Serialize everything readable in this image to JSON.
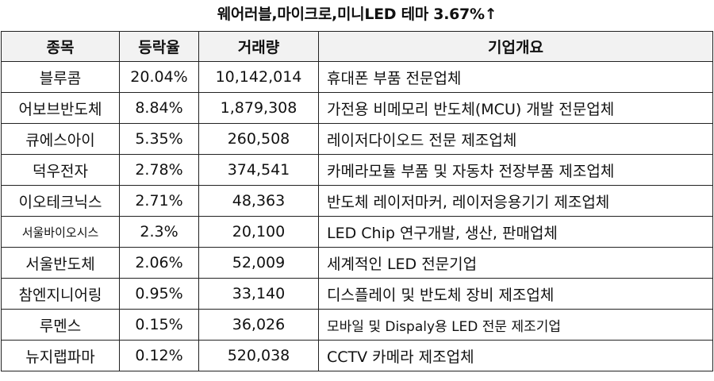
{
  "title": "웨어러블,마이크로,미니LED 테마 3.67%↑",
  "headers": {
    "name": "종목",
    "change": "등락율",
    "volume": "거래량",
    "overview": "기업개요"
  },
  "rows": [
    {
      "name": "블루콤",
      "change": "20.04%",
      "volume": "10,142,014",
      "overview": "휴대폰 부품 전문업체"
    },
    {
      "name": "어보브반도체",
      "change": "8.84%",
      "volume": "1,879,308",
      "overview": "가전용 비메모리 반도체(MCU) 개발 전문업체"
    },
    {
      "name": "큐에스아이",
      "change": "5.35%",
      "volume": "260,508",
      "overview": "레이저다이오드 전문 제조업체"
    },
    {
      "name": "덕우전자",
      "change": "2.78%",
      "volume": "374,541",
      "overview": "카메라모듈 부품 및 자동차 전장부품 제조업체"
    },
    {
      "name": "이오테크닉스",
      "change": "2.71%",
      "volume": "48,363",
      "overview": "반도체 레이저마커, 레이저응용기기 제조업체"
    },
    {
      "name": "서울바이오시스",
      "change": "2.3%",
      "volume": "20,100",
      "overview": "LED Chip 연구개발, 생산, 판매업체"
    },
    {
      "name": "서울반도체",
      "change": "2.06%",
      "volume": "52,009",
      "overview": "세계적인 LED 전문기업"
    },
    {
      "name": "참엔지니어링",
      "change": "0.95%",
      "volume": "33,140",
      "overview": "디스플레이 및 반도체 장비 제조업체"
    },
    {
      "name": "루멘스",
      "change": "0.15%",
      "volume": "36,026",
      "overview": "모바일 및 Dispaly용 LED 전문 제조기업"
    },
    {
      "name": "뉴지랩파마",
      "change": "0.12%",
      "volume": "520,038",
      "overview": "CCTV 카메라 제조업체"
    }
  ]
}
